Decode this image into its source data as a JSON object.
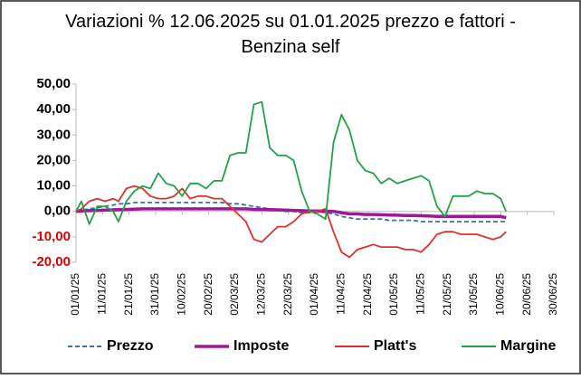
{
  "chart_data": {
    "type": "line",
    "title": "Variazioni % 12.06.2025 su 01.01.2025 prezzo e fattori - Benzina self",
    "x": [
      "01/01/25",
      "03/01/25",
      "06/01/25",
      "09/01/25",
      "12/01/25",
      "15/01/25",
      "17/01/25",
      "20/01/25",
      "23/01/25",
      "26/01/25",
      "29/01/25",
      "01/02/25",
      "04/02/25",
      "07/02/25",
      "10/02/25",
      "13/02/25",
      "16/02/25",
      "19/02/25",
      "22/02/25",
      "25/02/25",
      "28/02/25",
      "03/03/25",
      "06/03/25",
      "09/03/25",
      "12/03/25",
      "15/03/25",
      "18/03/25",
      "21/03/25",
      "24/03/25",
      "27/03/25",
      "30/03/25",
      "02/04/25",
      "05/04/25",
      "08/04/25",
      "11/04/25",
      "14/04/25",
      "17/04/25",
      "20/04/25",
      "23/04/25",
      "26/04/25",
      "29/04/25",
      "02/05/25",
      "05/05/25",
      "08/05/25",
      "11/05/25",
      "14/05/25",
      "17/05/25",
      "20/05/25",
      "23/05/25",
      "26/05/25",
      "29/05/25",
      "01/06/25",
      "04/06/25",
      "07/06/25",
      "10/06/25",
      "12/06/25"
    ],
    "series": [
      {
        "name": "Prezzo",
        "color": "#2e75b6",
        "dash": true,
        "values": [
          0,
          0.5,
          1,
          1.5,
          2,
          2.5,
          3,
          3,
          3.5,
          3.5,
          3.5,
          3.5,
          3.5,
          3.5,
          3.5,
          3.5,
          3.5,
          3.5,
          3.5,
          3.5,
          3,
          3,
          2.5,
          2,
          1.5,
          1,
          0.5,
          0,
          0,
          -0.5,
          -0.5,
          0,
          -0.5,
          -1,
          -2,
          -2.5,
          -3,
          -3,
          -3,
          -3,
          -3.5,
          -3.5,
          -3.5,
          -3.5,
          -4,
          -4,
          -4,
          -4,
          -4,
          -4,
          -4,
          -4,
          -4,
          -4,
          -4,
          -4
        ]
      },
      {
        "name": "Imposte",
        "color": "#a0189a",
        "width": 3.5,
        "values": [
          0,
          0.2,
          0.3,
          0.4,
          0.5,
          0.6,
          0.7,
          0.8,
          0.9,
          1,
          1,
          1,
          1,
          1,
          1,
          1,
          1,
          1,
          1,
          1,
          1,
          1,
          1,
          0.8,
          0.8,
          0.7,
          0.6,
          0.5,
          0.4,
          0.3,
          0.2,
          0.2,
          0.1,
          0,
          -0.5,
          -1,
          -1,
          -1.2,
          -1.2,
          -1.3,
          -1.4,
          -1.5,
          -1.6,
          -1.6,
          -1.7,
          -1.8,
          -2,
          -2,
          -2,
          -2,
          -2,
          -2,
          -2,
          -2,
          -2,
          -2.5
        ]
      },
      {
        "name": "Platt's",
        "color": "#e0302a",
        "values": [
          0,
          1,
          4,
          5,
          4,
          5,
          4,
          9,
          10,
          9,
          6,
          5,
          5,
          6,
          9,
          5,
          6,
          6,
          5,
          5,
          2,
          -1,
          -4,
          -11,
          -12,
          -9,
          -6,
          -6,
          -4,
          -1,
          0,
          0,
          1,
          -8,
          -16,
          -18,
          -15,
          -14,
          -13,
          -14,
          -14,
          -14,
          -15,
          -15,
          -16,
          -13,
          -9,
          -8,
          -8,
          -9,
          -9,
          -9,
          -10,
          -11,
          -10,
          -8
        ]
      },
      {
        "name": "Margine",
        "color": "#23a04a",
        "values": [
          0,
          4,
          -5,
          2,
          2,
          0,
          -4,
          4,
          8,
          10,
          9,
          15,
          11,
          10,
          6,
          11,
          11,
          9,
          12,
          12,
          22,
          23,
          23,
          42,
          43,
          25,
          22,
          22,
          20,
          8,
          0,
          -1,
          -3,
          27,
          38,
          32,
          20,
          16,
          15,
          11,
          13,
          11,
          12,
          13,
          14,
          12,
          2,
          -2,
          6,
          6,
          6,
          8,
          7,
          7,
          5,
          0
        ]
      }
    ],
    "xlim": [
      "01/01/25",
      "30/06/25"
    ],
    "xticks": [
      "01/01/25",
      "11/01/25",
      "21/01/25",
      "31/01/25",
      "10/02/25",
      "20/02/25",
      "02/03/25",
      "12/03/25",
      "22/03/25",
      "01/04/25",
      "11/04/25",
      "21/04/25",
      "01/05/25",
      "11/05/25",
      "21/05/25",
      "31/05/25",
      "10/06/25",
      "20/06/25",
      "30/06/25"
    ],
    "ylim": [
      -20,
      50
    ],
    "yticks": [
      {
        "value": -20,
        "label": "-20,00"
      },
      {
        "value": -10,
        "label": "-10,00"
      },
      {
        "value": 0,
        "label": "0,00"
      },
      {
        "value": 10,
        "label": "10,00"
      },
      {
        "value": 20,
        "label": "20,00"
      },
      {
        "value": 30,
        "label": "30,00"
      },
      {
        "value": 40,
        "label": "40,00"
      },
      {
        "value": 50,
        "label": "50,00"
      }
    ],
    "negative_tick_color": "#e00000",
    "grid": false,
    "legend": "bottom"
  }
}
